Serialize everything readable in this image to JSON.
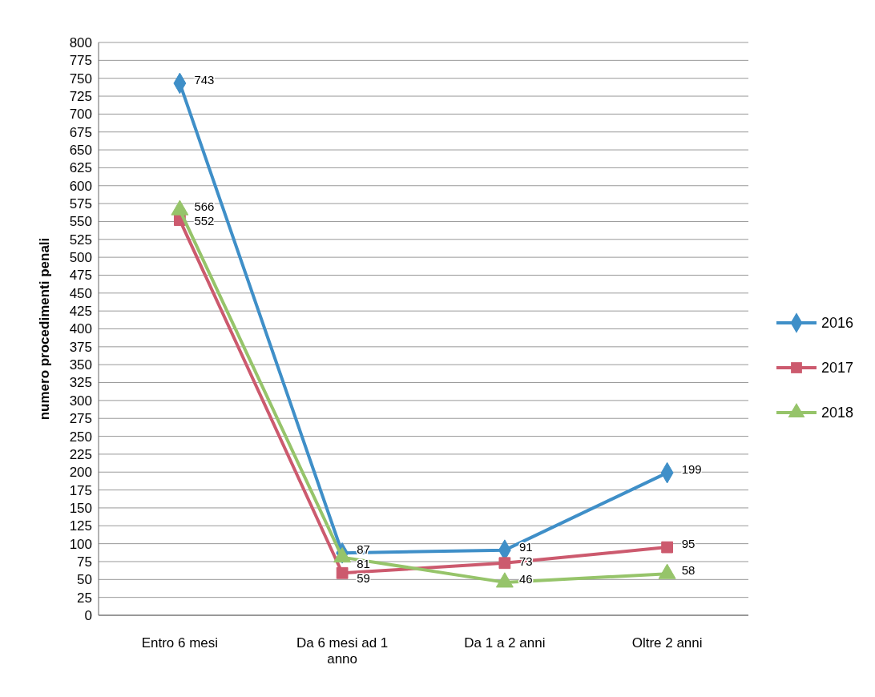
{
  "chart_data": {
    "type": "line",
    "ylabel": "numero procedimenti penali",
    "categories": [
      "Entro 6 mesi",
      "Da 6 mesi ad 1 anno",
      "Da 1 a 2 anni",
      "Oltre 2 anni"
    ],
    "series": [
      {
        "name": "2016",
        "color": "#3f8fc8",
        "marker": "diamond",
        "values": [
          743,
          87,
          91,
          199
        ]
      },
      {
        "name": "2017",
        "color": "#cc5a6e",
        "marker": "square",
        "values": [
          552,
          59,
          73,
          95
        ]
      },
      {
        "name": "2018",
        "color": "#96c46a",
        "marker": "triangle",
        "values": [
          566,
          81,
          46,
          58
        ]
      }
    ],
    "ylim": [
      0,
      800
    ],
    "yticks": [
      0,
      25,
      50,
      75,
      100,
      125,
      150,
      175,
      200,
      225,
      250,
      275,
      300,
      325,
      350,
      375,
      400,
      425,
      450,
      475,
      500,
      525,
      550,
      575,
      600,
      625,
      650,
      675,
      700,
      725,
      750,
      775,
      800
    ],
    "grid": "y",
    "legend": "right",
    "data_labels": true
  }
}
